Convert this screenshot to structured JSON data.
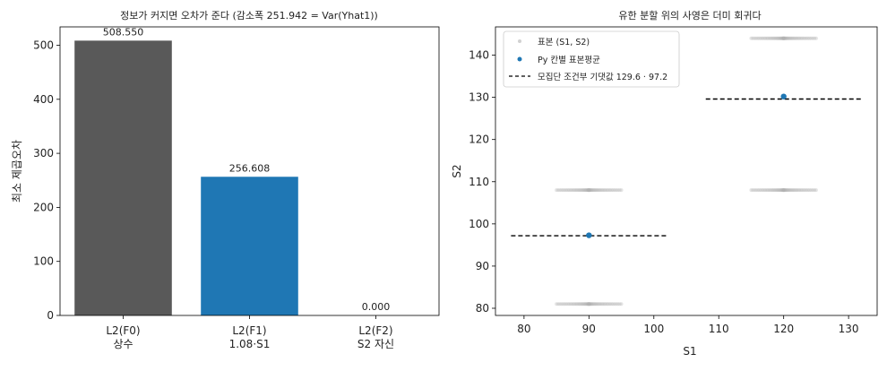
{
  "chart_data": [
    {
      "type": "bar",
      "title": "정보가 커지면 오차가 준다 (감소폭 251.942 = Var(Yhat1))",
      "ylabel": "최소 제곱오차",
      "categories": [
        {
          "line1": "L2(F0)",
          "line2": "상수"
        },
        {
          "line1": "L2(F1)",
          "line2": "1.08·S1"
        },
        {
          "line1": "L2(F2)",
          "line2": "S2 자신"
        }
      ],
      "values": [
        508.55,
        256.608,
        0.0
      ],
      "value_labels": [
        "508.550",
        "256.608",
        "0.000"
      ],
      "colors": [
        "#595959",
        "#1f77b4",
        "#595959"
      ],
      "ylim": [
        0,
        534
      ],
      "yticks": [
        0,
        100,
        200,
        300,
        400,
        500
      ]
    },
    {
      "type": "scatter",
      "title": "유한 분할 위의 사영은 더미 회귀다",
      "xlabel": "S1",
      "ylabel": "S2",
      "xlim": [
        75.6,
        134.4
      ],
      "ylim": [
        78.3,
        146.7
      ],
      "xticks": [
        80,
        90,
        100,
        110,
        120,
        130
      ],
      "yticks": [
        80,
        90,
        100,
        110,
        120,
        130,
        140
      ],
      "legend": {
        "position": "top-left",
        "samples": "표본 (S1, S2)",
        "cell_means": "Py 칸별 표본평균",
        "cond_exp": "모집단 조건부 기댓값 129.6 · 97.2"
      },
      "sample_clusters": [
        {
          "x_range": [
            85,
            95
          ],
          "y": 81
        },
        {
          "x_range": [
            85,
            95
          ],
          "y": 108
        },
        {
          "x_range": [
            115,
            125
          ],
          "y": 108
        },
        {
          "x_range": [
            115,
            125
          ],
          "y": 144
        }
      ],
      "cell_means": [
        {
          "x": 90,
          "y": 97.3
        },
        {
          "x": 120,
          "y": 130.2
        }
      ],
      "cond_exp_segments": [
        {
          "x": [
            78,
            102
          ],
          "y": 97.2
        },
        {
          "x": [
            108,
            132
          ],
          "y": 129.6
        }
      ],
      "colors": {
        "samples": "#b3b3b3",
        "means": "#1f77b4",
        "cond_exp": "#000000"
      }
    }
  ]
}
